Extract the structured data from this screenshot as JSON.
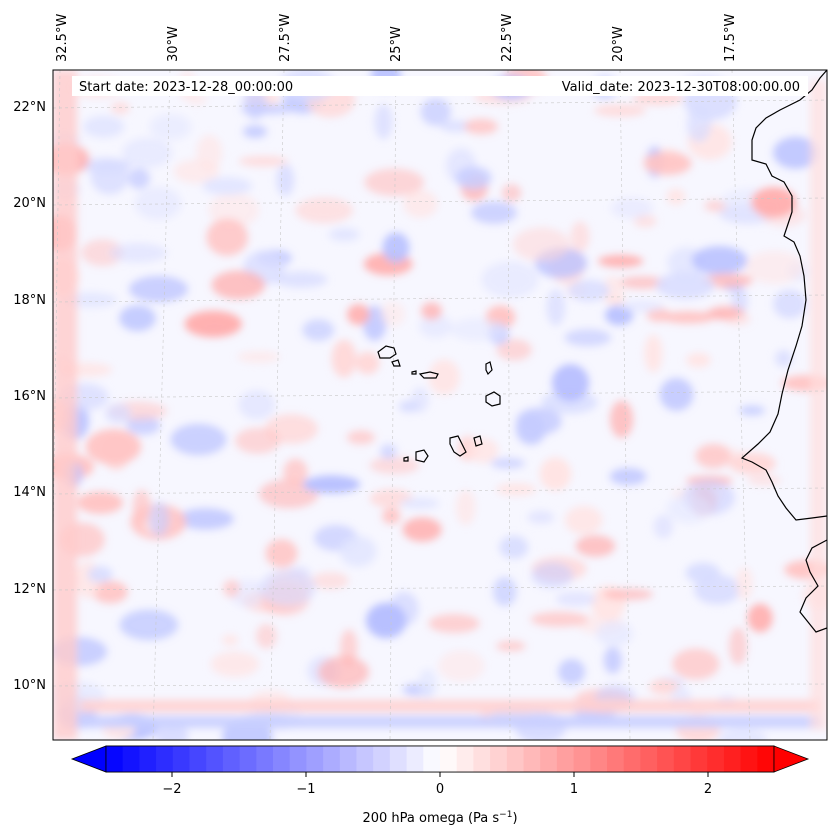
{
  "header": {
    "start_date": "Start date: 2023-12-28_00:00:00",
    "valid_date": "Valid_date: 2023-12-30T08:00:00.00"
  },
  "longitude_labels": [
    "32.5°W",
    "30°W",
    "27.5°W",
    "25°W",
    "22.5°W",
    "20°W",
    "17.5°W"
  ],
  "latitude_labels": [
    "22°N",
    "20°N",
    "18°N",
    "16°N",
    "14°N",
    "12°N",
    "10°N"
  ],
  "colorbar": {
    "label": "200 hPa omega (Pa s",
    "label_sup": "−1",
    "label_close": ")",
    "ticks": [
      "−2",
      "−1",
      "0",
      "1",
      "2"
    ],
    "min": -2.7,
    "max": 2.7,
    "colormap": "bwr",
    "low_color": "#0000ff",
    "mid_color": "#ffffff",
    "high_color": "#ff0000"
  },
  "map": {
    "field": "omega",
    "level": "200 hPa",
    "coastline_color": "#000000",
    "gridline_color": "#c8c8c8"
  }
}
